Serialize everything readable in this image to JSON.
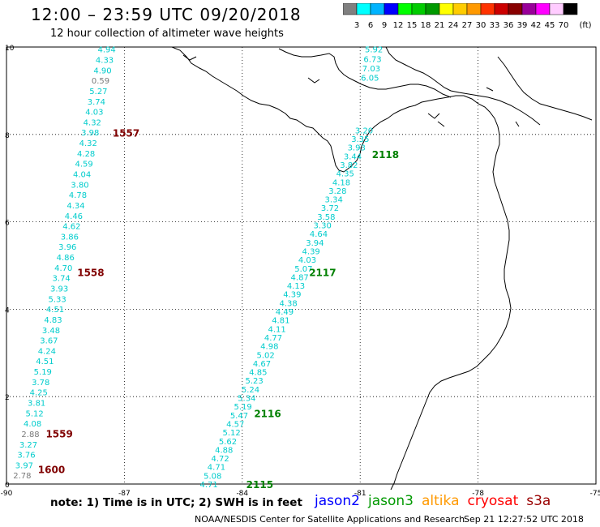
{
  "title": "12:00 – 23:59 UTC 09/20/2018",
  "subtitle": "12 hour collection of altimeter wave heights",
  "scale": {
    "colors": [
      "#808080",
      "#00ffff",
      "#00b4ff",
      "#0000ff",
      "#00ff00",
      "#00cc00",
      "#009900",
      "#ffff00",
      "#ffcc00",
      "#ff9900",
      "#ff3300",
      "#cc0000",
      "#880000",
      "#990099",
      "#ff00ff",
      "#ffccff",
      "#000000"
    ],
    "labels": [
      "3",
      "6",
      "9",
      "12",
      "15",
      "18",
      "21",
      "24",
      "27",
      "30",
      "33",
      "36",
      "39",
      "42",
      "45",
      "70"
    ],
    "unit": "(ft)"
  },
  "axes": {
    "x_ticks": [
      "-90",
      "-87",
      "-84",
      "-81",
      "-78",
      "-75"
    ],
    "y_ticks": [
      "0",
      "2",
      "4",
      "6",
      "8",
      "10"
    ],
    "xlim": [
      -90,
      -75
    ],
    "ylim": [
      0,
      10
    ]
  },
  "tracks": [
    {
      "id": "1557",
      "satellite": "jason3",
      "label_color": "#800000",
      "label_lon": -87.3,
      "label_lat": 8.04,
      "values": [
        "4.94",
        "4.33",
        "4.90",
        "0.59",
        "5.27",
        "3.74",
        "4.03",
        "4.32",
        "3.98",
        "4.32",
        "4.28",
        "4.59",
        "4.04",
        "3.80",
        "4.78",
        "4.34",
        "4.46",
        "4.62",
        "3.86",
        "3.96",
        "4.86",
        "4.70",
        "3.74",
        "3.93",
        "5.33",
        "4.51",
        "4.83",
        "3.48",
        "3.67",
        "4.24",
        "4.51",
        "5.19",
        "3.78",
        "4.25",
        "3.81",
        "5.12",
        "4.08",
        "2.88",
        "3.27",
        "3.76",
        "3.97",
        "2.78"
      ],
      "start": [
        -87.45,
        9.95
      ],
      "end": [
        -89.6,
        0.2
      ]
    },
    {
      "id": "2115",
      "satellite": "jason3",
      "label_color": "#008000",
      "label_lon": -83.9,
      "label_lat": 0.0,
      "values": [
        "4.71",
        "5.08",
        "4.71",
        "4.72",
        "4.88",
        "5.62",
        "5.12",
        "4.57",
        "5.47",
        "5.19",
        "5.34",
        "5.24",
        "5.23",
        "4.85",
        "4.67",
        "5.02",
        "4.98",
        "4.77",
        "4.11",
        "4.81",
        "4.49",
        "4.38",
        "4.39",
        "4.13",
        "4.87",
        "5.07",
        "4.03",
        "4.39",
        "3.94",
        "4.64",
        "3.30",
        "3.58",
        "3.72",
        "3.34",
        "3.28",
        "4.18",
        "4.35",
        "3.82",
        "3.44",
        "3.93",
        "3.35",
        "3.20"
      ],
      "start": [
        -84.85,
        0.0
      ],
      "end": [
        -80.9,
        8.1
      ]
    },
    {
      "id": "1559",
      "satellite": "jason3",
      "label_color": "#800000",
      "label_lon": -89.0,
      "label_lat": 1.16,
      "values": []
    },
    {
      "id": "1600",
      "satellite": "jason3",
      "label_color": "#800000",
      "label_lon": -89.2,
      "label_lat": 0.34,
      "values": []
    },
    {
      "id": "1558",
      "satellite": "jason3",
      "label_color": "#800000",
      "label_lon": -88.2,
      "label_lat": 4.85,
      "values": []
    },
    {
      "id": "2116",
      "satellite": "jason3",
      "label_color": "#008000",
      "label_lon": -83.7,
      "label_lat": 1.62,
      "values": []
    },
    {
      "id": "2117",
      "satellite": "jason3",
      "label_color": "#008000",
      "label_lon": -82.3,
      "label_lat": 4.85,
      "values": []
    },
    {
      "id": "2118",
      "satellite": "jason3",
      "label_color": "#008000",
      "label_lon": -80.7,
      "label_lat": 7.55,
      "values": []
    },
    {
      "id": "north",
      "satellite": "jason3",
      "label_color": "#00cccc",
      "label_lon": 0,
      "label_lat": 0,
      "values": [
        "5.92",
        "6.73",
        "7.03",
        "6.05"
      ],
      "start": [
        -80.65,
        9.95
      ],
      "end": [
        -80.75,
        9.3
      ]
    }
  ],
  "note": "note: 1) Time is in UTC; 2) SWH is in feet",
  "satellites": [
    {
      "name": "jason2",
      "color": "#0000ff"
    },
    {
      "name": "jason3",
      "color": "#009900"
    },
    {
      "name": "altika",
      "color": "#ff9900"
    },
    {
      "name": "cryosat",
      "color": "#ff0000"
    },
    {
      "name": "s3a",
      "color": "#990000"
    }
  ],
  "credit": "NOAA/NESDIS Center for Satellite Applications and Research",
  "timestamp": "Sep 21 12:27:52 UTC 2018"
}
